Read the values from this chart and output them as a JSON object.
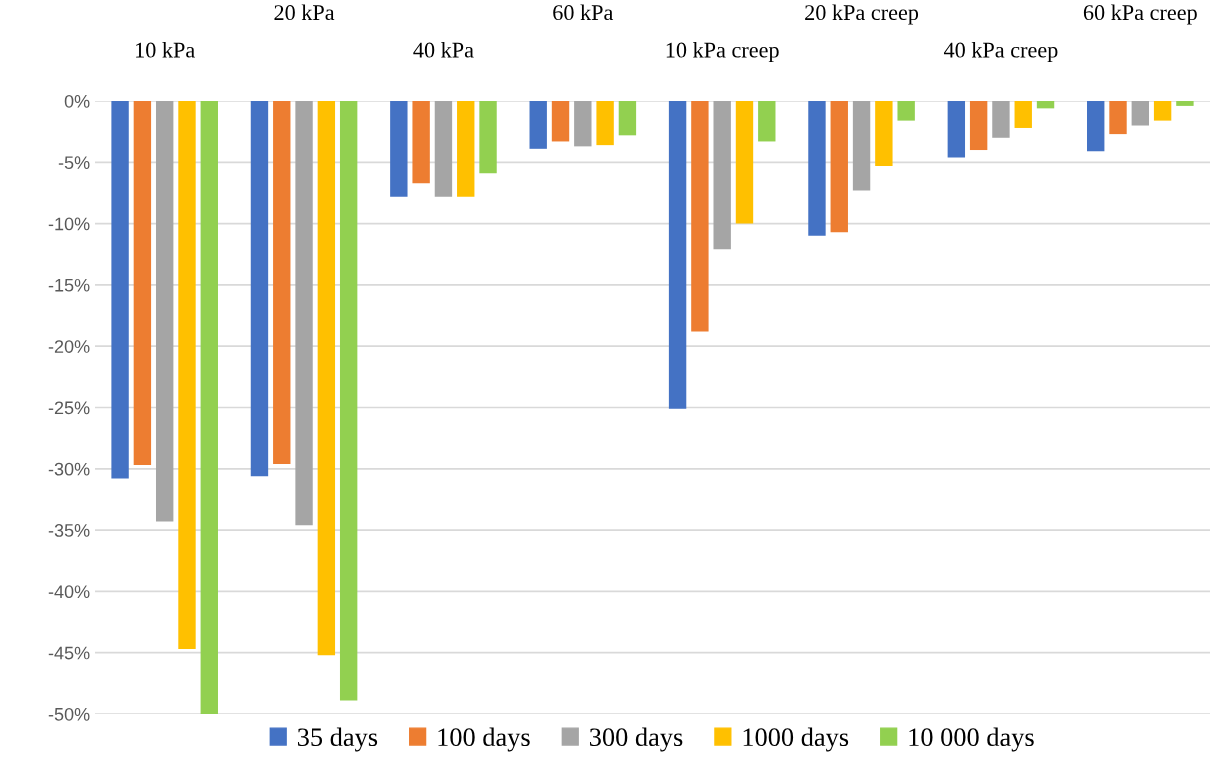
{
  "chart_data": {
    "type": "bar",
    "categories": [
      "10 kPa",
      "20 kPa",
      "40 kPa",
      "60 kPa",
      "10 kPa creep",
      "20 kPa creep",
      "40 kPa creep",
      "60 kPa creep"
    ],
    "series": [
      {
        "name": "35 days",
        "color": "#4472c4",
        "values": [
          -30.8,
          -30.6,
          -7.8,
          -3.9,
          -25.1,
          -11.0,
          -4.6,
          -4.1
        ]
      },
      {
        "name": "100 days",
        "color": "#ed7d31",
        "values": [
          -29.7,
          -29.6,
          -6.7,
          -3.3,
          -18.8,
          -10.7,
          -4.0,
          -2.7
        ]
      },
      {
        "name": "300 days",
        "color": "#a5a5a5",
        "values": [
          -34.3,
          -34.6,
          -7.8,
          -3.7,
          -12.1,
          -7.3,
          -3.0,
          -2.0
        ]
      },
      {
        "name": "1000 days",
        "color": "#ffc000",
        "values": [
          -44.7,
          -45.2,
          -7.8,
          -3.6,
          -10.0,
          -5.3,
          -2.2,
          -1.6
        ]
      },
      {
        "name": "10 000 days",
        "color": "#92d050",
        "values": [
          -50.0,
          -48.9,
          -5.9,
          -2.8,
          -3.3,
          -1.6,
          -0.6,
          -0.4
        ]
      }
    ],
    "ylim": [
      -50,
      0
    ],
    "yticks": [
      {
        "value": 0,
        "label": "0%"
      },
      {
        "value": -5,
        "label": "-5%"
      },
      {
        "value": -10,
        "label": "-10%"
      },
      {
        "value": -15,
        "label": "-15%"
      },
      {
        "value": -20,
        "label": "-20%"
      },
      {
        "value": -25,
        "label": "-25%"
      },
      {
        "value": -30,
        "label": "-30%"
      },
      {
        "value": -35,
        "label": "-35%"
      },
      {
        "value": -40,
        "label": "-40%"
      },
      {
        "value": -45,
        "label": "-45%"
      },
      {
        "value": -50,
        "label": "-50%"
      }
    ],
    "grid": "y",
    "legend": "bottom"
  }
}
